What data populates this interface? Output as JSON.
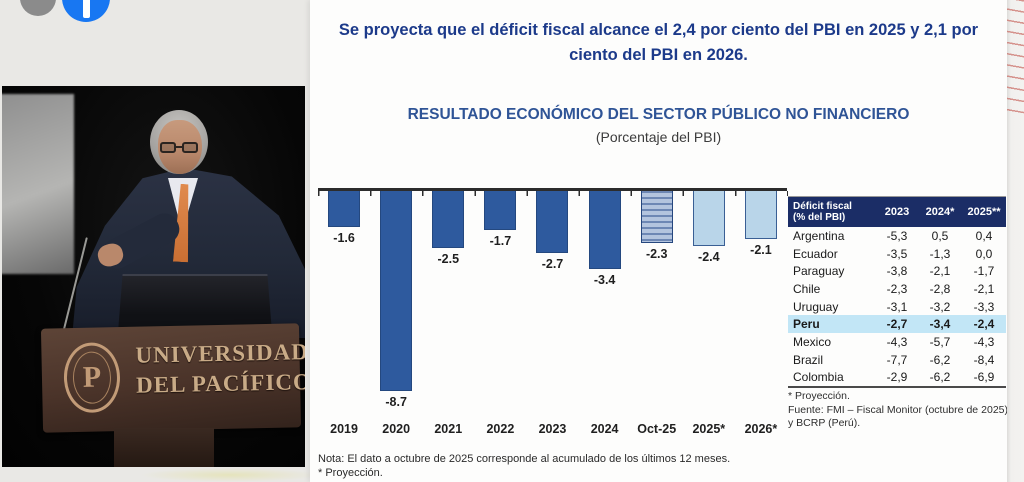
{
  "topbar": {
    "icons": [
      "profile-circle-icon",
      "blue-app-icon"
    ]
  },
  "video": {
    "podium": {
      "line1": "UNIVERSIDAD",
      "line2": "DEL PACÍFICO",
      "seal_monogram": "P"
    }
  },
  "slide": {
    "headline_lines": [
      "Se proyecta que el déficit fiscal alcance el 2,4 por ciento del PBI en 2025 y 2,1 por",
      "ciento del PBI en 2026."
    ],
    "accent_color": "#1c3a8a"
  },
  "chart_data": {
    "type": "bar",
    "title": "RESULTADO ECONÓMICO DEL SECTOR PÚBLICO NO FINANCIERO",
    "subtitle": "(Porcentaje del PBI)",
    "categories": [
      "2019",
      "2020",
      "2021",
      "2022",
      "2023",
      "2024",
      "Oct-25",
      "2025*",
      "2026*"
    ],
    "values": [
      -1.6,
      -8.7,
      -2.5,
      -1.7,
      -2.7,
      -3.4,
      -2.3,
      -2.4,
      -2.1
    ],
    "value_labels": [
      "-1.6",
      "-8.7",
      "-2.5",
      "-1.7",
      "-2.7",
      "-3.4",
      "-2.3",
      "-2.4",
      "-2.1"
    ],
    "bar_styles": [
      "solid",
      "solid",
      "solid",
      "solid",
      "solid",
      "solid",
      "hatched",
      "light",
      "light"
    ],
    "ylim": [
      -9.5,
      0
    ],
    "grid": false,
    "legend": "none",
    "colors": {
      "solid": "#2e5a9e",
      "light": "#b9d5e9",
      "hatch": "striped-blue"
    },
    "note_lines": [
      "Nota: El dato a octubre de 2025 corresponde al acumulado de los últimos 12 meses.",
      "* Proyección."
    ]
  },
  "table": {
    "header": {
      "col0_line1": "Déficit fiscal",
      "col0_line2": "(%  del PBI)",
      "cols": [
        "2023",
        "2024*",
        "2025**"
      ]
    },
    "rows": [
      {
        "country": "Argentina",
        "values": [
          "-5,3",
          "0,5",
          "0,4"
        ],
        "highlight": false
      },
      {
        "country": "Ecuador",
        "values": [
          "-3,5",
          "-1,3",
          "0,0"
        ],
        "highlight": false
      },
      {
        "country": "Paraguay",
        "values": [
          "-3,8",
          "-2,1",
          "-1,7"
        ],
        "highlight": false
      },
      {
        "country": "Chile",
        "values": [
          "-2,3",
          "-2,8",
          "-2,1"
        ],
        "highlight": false
      },
      {
        "country": "Uruguay",
        "values": [
          "-3,1",
          "-3,2",
          "-3,3"
        ],
        "highlight": false
      },
      {
        "country": "Peru",
        "values": [
          "-2,7",
          "-3,4",
          "-2,4"
        ],
        "highlight": true
      },
      {
        "country": "Mexico",
        "values": [
          "-4,3",
          "-5,7",
          "-4,3"
        ],
        "highlight": false
      },
      {
        "country": "Brazil",
        "values": [
          "-7,7",
          "-6,2",
          "-8,4"
        ],
        "highlight": false
      },
      {
        "country": "Colombia",
        "values": [
          "-2,9",
          "-6,2",
          "-6,9"
        ],
        "highlight": false
      }
    ],
    "footnotes": [
      "* Proyección.",
      "Fuente: FMI – Fiscal Monitor (octubre de 2025) y BCRP (Perú)."
    ]
  }
}
